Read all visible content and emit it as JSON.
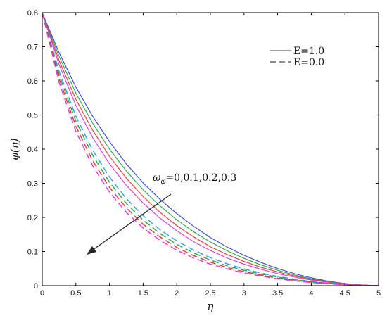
{
  "chart_data": {
    "type": "line",
    "title": "",
    "xlabel": "η",
    "ylabel": "φ(η)",
    "xlim": [
      0,
      5
    ],
    "ylim": [
      0,
      0.8
    ],
    "xticks": [
      "0",
      "0.5",
      "1",
      "1.5",
      "2",
      "2.5",
      "3",
      "3.5",
      "4",
      "4.5",
      "5"
    ],
    "yticks": [
      "0",
      "0.1",
      "0.2",
      "0.3",
      "0.4",
      "0.5",
      "0.6",
      "0.7",
      "0.8"
    ],
    "grid": false,
    "legend_position": "top-right",
    "legend": [
      {
        "label": "E=1.0",
        "style": "solid"
      },
      {
        "label": "E=0.0",
        "style": "dashed"
      }
    ],
    "annotation": {
      "text": "ω",
      "subscript": "φ",
      "values": "=0,0.1,0.2,0.3"
    },
    "x": [
      0,
      0.25,
      0.5,
      0.75,
      1,
      1.25,
      1.5,
      1.75,
      2,
      2.25,
      2.5,
      2.75,
      3,
      3.25,
      3.5,
      3.75,
      4,
      4.25,
      4.5,
      4.75,
      5
    ],
    "series": [
      {
        "style": "solid",
        "color": "#3344dd",
        "values": [
          0.8,
          0.683,
          0.582,
          0.496,
          0.422,
          0.357,
          0.301,
          0.253,
          0.211,
          0.174,
          0.141,
          0.113,
          0.089,
          0.068,
          0.05,
          0.035,
          0.023,
          0.013,
          0.006,
          0.002,
          0
        ]
      },
      {
        "style": "solid",
        "color": "#22aa44",
        "values": [
          0.8,
          0.672,
          0.564,
          0.476,
          0.4,
          0.336,
          0.281,
          0.234,
          0.193,
          0.158,
          0.128,
          0.102,
          0.08,
          0.061,
          0.045,
          0.031,
          0.02,
          0.012,
          0.006,
          0.002,
          0
        ]
      },
      {
        "style": "solid",
        "color": "#ee3333",
        "values": [
          0.8,
          0.66,
          0.546,
          0.455,
          0.379,
          0.315,
          0.261,
          0.215,
          0.176,
          0.143,
          0.114,
          0.091,
          0.071,
          0.054,
          0.04,
          0.028,
          0.018,
          0.011,
          0.005,
          0.002,
          0
        ]
      },
      {
        "style": "solid",
        "color": "#dd33dd",
        "values": [
          0.8,
          0.648,
          0.528,
          0.434,
          0.357,
          0.294,
          0.242,
          0.198,
          0.161,
          0.129,
          0.103,
          0.081,
          0.063,
          0.048,
          0.035,
          0.025,
          0.016,
          0.01,
          0.005,
          0.002,
          0
        ]
      },
      {
        "style": "dashed",
        "color": "#3399ee",
        "values": [
          0.8,
          0.628,
          0.496,
          0.397,
          0.318,
          0.255,
          0.205,
          0.164,
          0.131,
          0.104,
          0.082,
          0.064,
          0.049,
          0.037,
          0.027,
          0.019,
          0.012,
          0.007,
          0.004,
          0.001,
          0
        ]
      },
      {
        "style": "dashed",
        "color": "#22aa44",
        "values": [
          0.8,
          0.618,
          0.482,
          0.382,
          0.303,
          0.241,
          0.192,
          0.153,
          0.121,
          0.096,
          0.075,
          0.058,
          0.045,
          0.034,
          0.025,
          0.017,
          0.011,
          0.007,
          0.004,
          0.001,
          0
        ]
      },
      {
        "style": "dashed",
        "color": "#ee3333",
        "values": [
          0.8,
          0.607,
          0.467,
          0.366,
          0.288,
          0.228,
          0.18,
          0.143,
          0.112,
          0.088,
          0.069,
          0.053,
          0.041,
          0.031,
          0.022,
          0.015,
          0.01,
          0.006,
          0.003,
          0.001,
          0
        ]
      },
      {
        "style": "dashed",
        "color": "#dd33dd",
        "values": [
          0.8,
          0.596,
          0.452,
          0.351,
          0.274,
          0.215,
          0.169,
          0.133,
          0.104,
          0.081,
          0.063,
          0.049,
          0.037,
          0.028,
          0.02,
          0.014,
          0.009,
          0.005,
          0.003,
          0.001,
          0
        ]
      }
    ]
  }
}
